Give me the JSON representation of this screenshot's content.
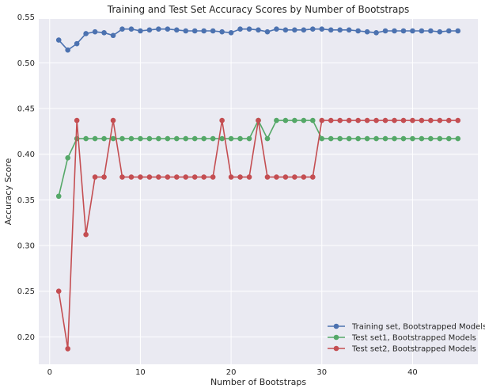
{
  "chart_data": {
    "type": "line",
    "title": "Training and Test Set Accuracy Scores by Number of Bootstraps",
    "xlabel": "Number of Bootstraps",
    "ylabel": "Accuracy Score",
    "xlim": [
      -1.2,
      47.2
    ],
    "ylim": [
      0.17,
      0.548
    ],
    "xticks": [
      0,
      10,
      20,
      30,
      40
    ],
    "yticks": [
      0.2,
      0.25,
      0.3,
      0.35,
      0.4,
      0.45,
      0.5,
      0.55
    ],
    "ytick_labels": [
      "0.20",
      "0.25",
      "0.30",
      "0.35",
      "0.40",
      "0.45",
      "0.50",
      "0.55"
    ],
    "grid": true,
    "legend_position": "lower-right",
    "x": [
      1,
      2,
      3,
      4,
      5,
      6,
      7,
      8,
      9,
      10,
      11,
      12,
      13,
      14,
      15,
      16,
      17,
      18,
      19,
      20,
      21,
      22,
      23,
      24,
      25,
      26,
      27,
      28,
      29,
      30,
      31,
      32,
      33,
      34,
      35,
      36,
      37,
      38,
      39,
      40,
      41,
      42,
      43,
      44,
      45
    ],
    "series": [
      {
        "name": "Training set, Bootstrapped Models",
        "color": "#4c72b0",
        "values": [
          0.525,
          0.514,
          0.521,
          0.532,
          0.534,
          0.533,
          0.53,
          0.537,
          0.537,
          0.535,
          0.536,
          0.537,
          0.537,
          0.536,
          0.535,
          0.535,
          0.535,
          0.535,
          0.534,
          0.533,
          0.537,
          0.537,
          0.536,
          0.534,
          0.537,
          0.536,
          0.536,
          0.536,
          0.537,
          0.537,
          0.536,
          0.536,
          0.536,
          0.535,
          0.534,
          0.533,
          0.535,
          0.535,
          0.535,
          0.535,
          0.535,
          0.535,
          0.534,
          0.535,
          0.535
        ]
      },
      {
        "name": "Test set1, Bootstrapped Models",
        "color": "#55a868",
        "values": [
          0.354,
          0.396,
          0.417,
          0.417,
          0.417,
          0.417,
          0.417,
          0.417,
          0.417,
          0.417,
          0.417,
          0.417,
          0.417,
          0.417,
          0.417,
          0.417,
          0.417,
          0.417,
          0.417,
          0.417,
          0.417,
          0.417,
          0.437,
          0.417,
          0.437,
          0.437,
          0.437,
          0.437,
          0.437,
          0.417,
          0.417,
          0.417,
          0.417,
          0.417,
          0.417,
          0.417,
          0.417,
          0.417,
          0.417,
          0.417,
          0.417,
          0.417,
          0.417,
          0.417,
          0.417
        ]
      },
      {
        "name": "Test set2, Bootstrapped Models",
        "color": "#c44e52",
        "values": [
          0.25,
          0.187,
          0.437,
          0.312,
          0.375,
          0.375,
          0.437,
          0.375,
          0.375,
          0.375,
          0.375,
          0.375,
          0.375,
          0.375,
          0.375,
          0.375,
          0.375,
          0.375,
          0.437,
          0.375,
          0.375,
          0.375,
          0.437,
          0.375,
          0.375,
          0.375,
          0.375,
          0.375,
          0.375,
          0.437,
          0.437,
          0.437,
          0.437,
          0.437,
          0.437,
          0.437,
          0.437,
          0.437,
          0.437,
          0.437,
          0.437,
          0.437,
          0.437,
          0.437,
          0.437
        ]
      }
    ]
  },
  "style": {
    "plot_background": "#eaeaf2",
    "grid_color": "#ffffff",
    "text_color": "#262626"
  }
}
